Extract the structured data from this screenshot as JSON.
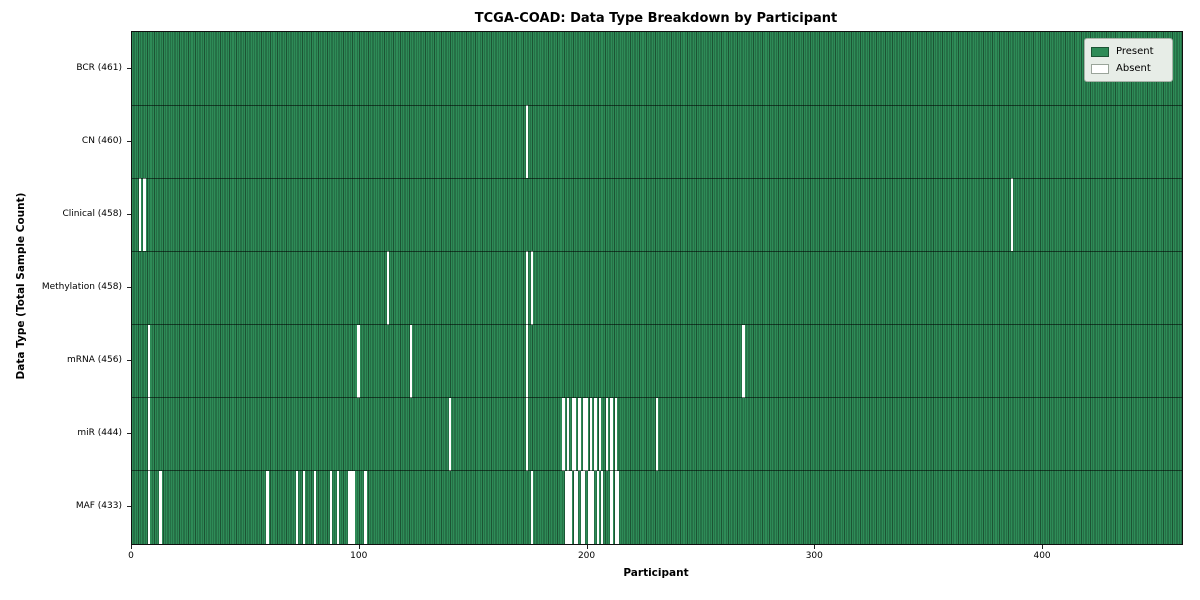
{
  "title": "TCGA-COAD: Data Type Breakdown by Participant",
  "x_axis": {
    "label": "Participant",
    "ticks": [
      "0",
      "100",
      "200",
      "300",
      "400"
    ]
  },
  "y_axis": {
    "label": "Data Type (Total Sample Count)"
  },
  "legend": {
    "items": [
      {
        "label": "Present",
        "color": "#2e8b57"
      },
      {
        "label": "Absent",
        "color": "#ffffff"
      }
    ]
  },
  "colors": {
    "present_fill": "#2e8b57",
    "present_edge": "#1c5434",
    "absent_fill": "#ffffff",
    "frame": "#101010",
    "legend_background": "#e7ede7",
    "legend_border": "#a8b2a8"
  },
  "chart_data": {
    "type": "heatmap",
    "title": "TCGA-COAD: Data Type Breakdown by Participant",
    "xlabel": "Participant",
    "ylabel": "Data Type (Total Sample Count)",
    "legend_position": "upper right",
    "legend": [
      "Present",
      "Absent"
    ],
    "grid": false,
    "x_ticks": [
      0,
      100,
      200,
      300,
      400
    ],
    "x_range": [
      0,
      461
    ],
    "n_participants": 461,
    "cell_encoding": "green=Present, white=Absent; one column per participant",
    "rows": [
      {
        "label": "BCR (461)",
        "data_type": "BCR",
        "present_count": 461,
        "absent_count": 0,
        "absent_participants": []
      },
      {
        "label": "CN (460)",
        "data_type": "CN",
        "present_count": 460,
        "absent_count": 1,
        "absent_participants": [
          173
        ]
      },
      {
        "label": "Clinical (458)",
        "data_type": "Clinical",
        "present_count": 458,
        "absent_count": 3,
        "absent_participants": [
          3,
          5,
          386
        ]
      },
      {
        "label": "Methylation (458)",
        "data_type": "Methylation",
        "present_count": 458,
        "absent_count": 3,
        "absent_participants": [
          112,
          173,
          175
        ]
      },
      {
        "label": "mRNA (456)",
        "data_type": "mRNA",
        "present_count": 456,
        "absent_count": 5,
        "absent_participants": [
          7,
          99,
          122,
          173,
          268
        ]
      },
      {
        "label": "miR (444)",
        "data_type": "miR",
        "present_count": 444,
        "absent_count": 17,
        "absent_participants": [
          7,
          139,
          173,
          189,
          191,
          193,
          194,
          196,
          198,
          199,
          201,
          203,
          205,
          208,
          210,
          212,
          230
        ]
      },
      {
        "label": "MAF (433)",
        "data_type": "MAF",
        "present_count": 433,
        "absent_count": 28,
        "absent_participants": [
          7,
          12,
          59,
          72,
          75,
          80,
          87,
          90,
          95,
          96,
          97,
          102,
          175,
          190,
          191,
          192,
          194,
          195,
          197,
          198,
          200,
          201,
          202,
          204,
          206,
          210,
          212,
          213
        ]
      }
    ]
  }
}
